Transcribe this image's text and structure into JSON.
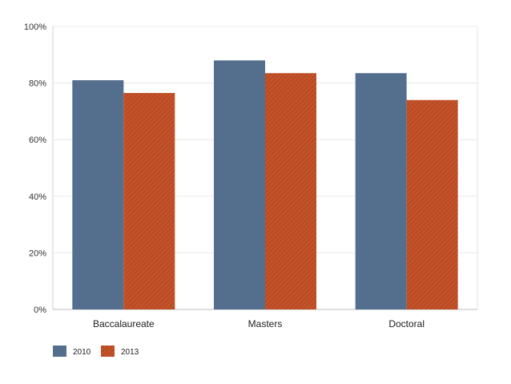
{
  "chart_data": {
    "type": "bar",
    "categories": [
      "Baccalaureate",
      "Masters",
      "Doctoral"
    ],
    "series": [
      {
        "name": "2010",
        "values": [
          81,
          88,
          83.5
        ],
        "color": "#546e8e",
        "pattern": "solid"
      },
      {
        "name": "2013",
        "values": [
          76.5,
          83.5,
          74
        ],
        "color": "#c4532a",
        "pattern": "diagonal-hatch"
      }
    ],
    "yticks": [
      "0%",
      "20%",
      "40%",
      "60%",
      "80%",
      "100%"
    ],
    "ylim": [
      0,
      100
    ],
    "grid": true,
    "legend": "bottom-left"
  }
}
